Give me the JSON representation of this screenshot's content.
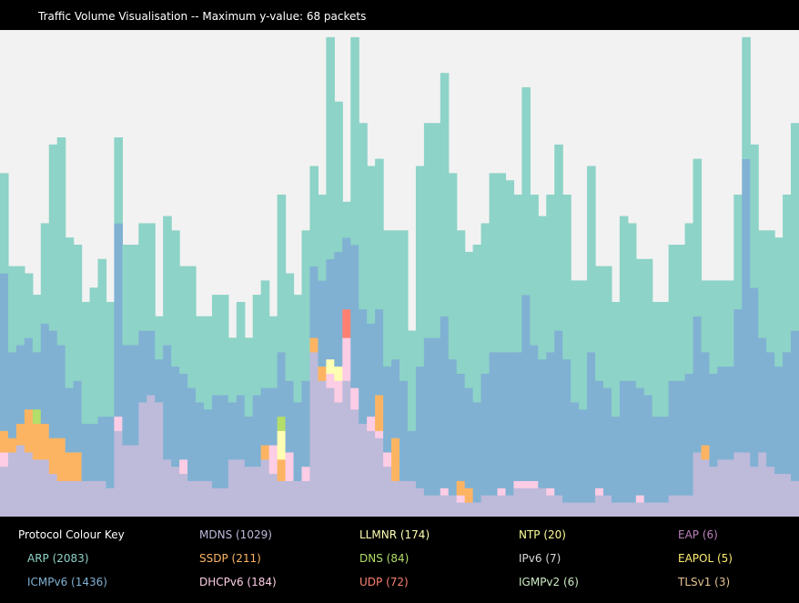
{
  "title": "Traffic Volume Visualisation -- Maximum y-value: 68 packets",
  "key_title": "Protocol Colour Key",
  "colors": {
    "background": "#000000",
    "plot_background": "#f2f2f2",
    "ARP": "#8dd3c7",
    "ICMPv6": "#80b1d3",
    "MDNS": "#bebada",
    "SSDP": "#fdb462",
    "DHCPv6": "#fccde5",
    "LLMNR": "#ffffb3",
    "DNS": "#b3de69",
    "UDP": "#fb8072",
    "NTP": "#ffff99",
    "IPv6": "#d9d9d9",
    "IGMPv2": "#ccebc5",
    "EAP": "#bc80bd",
    "EAPOL": "#ffed6f",
    "TLSv1": "#e5c494"
  },
  "legend": [
    {
      "label": "ARP (2083)",
      "color": "#8dd3c7"
    },
    {
      "label": "ICMPv6 (1436)",
      "color": "#80b1d3"
    },
    {
      "label": "MDNS (1029)",
      "color": "#bebada"
    },
    {
      "label": "SSDP (211)",
      "color": "#fdb462"
    },
    {
      "label": "DHCPv6 (184)",
      "color": "#fccde5"
    },
    {
      "label": "LLMNR (174)",
      "color": "#ffffb3"
    },
    {
      "label": "DNS (84)",
      "color": "#b3de69"
    },
    {
      "label": "UDP (72)",
      "color": "#fb8072"
    },
    {
      "label": "NTP (20)",
      "color": "#ffff99"
    },
    {
      "label": "IPv6 (7)",
      "color": "#d9d9d9"
    },
    {
      "label": "IGMPv2 (6)",
      "color": "#ccebc5"
    },
    {
      "label": "EAP (6)",
      "color": "#bc80bd"
    },
    {
      "label": "EAPOL (5)",
      "color": "#ffed6f"
    },
    {
      "label": "TLSv1 (3)",
      "color": "#e5c494"
    }
  ],
  "chart_data": {
    "type": "bar",
    "stacked": true,
    "ymax": 68,
    "series_order": [
      "MDNS",
      "DHCPv6",
      "UDP",
      "SSDP",
      "LLMNR",
      "DNS",
      "IPv6",
      "ICMPv6",
      "ARP"
    ],
    "totals": [
      48,
      35,
      35,
      34,
      31,
      41,
      52,
      53,
      39,
      38,
      30,
      32,
      36,
      30,
      53,
      38,
      38,
      41,
      41,
      28,
      42,
      40,
      35,
      35,
      28,
      28,
      31,
      31,
      25,
      30,
      25,
      31,
      33,
      28,
      45,
      34,
      31,
      40,
      49,
      45,
      67,
      58,
      44,
      67,
      55,
      49,
      49,
      40,
      40,
      40,
      26,
      49,
      55,
      55,
      62,
      48,
      40,
      37,
      38,
      41,
      48,
      48,
      47,
      45,
      60,
      45,
      42,
      45,
      52,
      45,
      33,
      33,
      49,
      35,
      35,
      30,
      42,
      41,
      36,
      36,
      30,
      30,
      38,
      38,
      41,
      50,
      33,
      33,
      33,
      33,
      45,
      67,
      52,
      40,
      40,
      39,
      45,
      55
    ],
    "layers": {
      "MDNS": [
        7,
        9,
        10,
        9,
        8,
        8,
        6,
        5,
        5,
        5,
        5,
        5,
        5,
        4,
        12,
        10,
        10,
        16,
        17,
        16,
        8,
        7,
        6,
        5,
        5,
        5,
        4,
        4,
        8,
        8,
        7,
        7,
        8,
        6,
        5,
        5,
        5,
        5,
        23,
        19,
        18,
        16,
        19,
        15,
        13,
        12,
        11,
        7,
        5,
        5,
        5,
        4,
        3,
        3,
        3,
        3,
        2,
        2,
        2,
        3,
        3,
        3,
        3,
        4,
        4,
        4,
        4,
        3,
        3,
        2,
        2,
        2,
        2,
        3,
        3,
        2,
        2,
        2,
        2,
        2,
        2,
        2,
        3,
        3,
        3,
        9,
        8,
        7,
        8,
        8,
        9,
        9,
        7,
        9,
        7,
        6,
        6,
        5
      ],
      "DHCPv6": [
        2,
        0,
        0,
        0,
        0,
        0,
        0,
        0,
        0,
        0,
        0,
        0,
        0,
        0,
        2,
        0,
        0,
        0,
        0,
        0,
        0,
        0,
        2,
        0,
        0,
        0,
        0,
        0,
        0,
        0,
        0,
        0,
        0,
        4,
        0,
        4,
        0,
        2,
        0,
        0,
        2,
        3,
        6,
        3,
        0,
        2,
        1,
        2,
        0,
        0,
        0,
        0,
        0,
        0,
        1,
        0,
        1,
        0,
        0,
        0,
        0,
        1,
        0,
        1,
        1,
        1,
        0,
        1,
        0,
        0,
        0,
        0,
        0,
        1,
        0,
        0,
        0,
        0,
        1,
        0,
        0,
        0,
        0,
        0,
        0,
        0,
        0,
        0,
        0,
        0,
        0,
        0,
        0,
        0,
        0,
        0,
        0,
        0
      ],
      "UDP": [
        0,
        0,
        0,
        0,
        0,
        0,
        0,
        0,
        0,
        0,
        0,
        0,
        0,
        0,
        0,
        0,
        0,
        0,
        0,
        0,
        0,
        0,
        0,
        0,
        0,
        0,
        0,
        0,
        0,
        0,
        0,
        0,
        0,
        0,
        0,
        0,
        0,
        0,
        0,
        0,
        0,
        0,
        4,
        0,
        0,
        0,
        0,
        0,
        0,
        0,
        0,
        0,
        0,
        0,
        0,
        0,
        0,
        0,
        0,
        0,
        0,
        0,
        0,
        0,
        0,
        0,
        0,
        0,
        0,
        0,
        0,
        0,
        0,
        0,
        0,
        0,
        0,
        0,
        0,
        0,
        0,
        0,
        0,
        0,
        0,
        0,
        0,
        0,
        0,
        0,
        0,
        0,
        0,
        0,
        0,
        0,
        0,
        0
      ],
      "SSDP": [
        3,
        2,
        3,
        6,
        5,
        5,
        5,
        6,
        4,
        4,
        0,
        0,
        0,
        0,
        0,
        0,
        0,
        0,
        0,
        0,
        0,
        0,
        0,
        0,
        0,
        0,
        0,
        0,
        0,
        0,
        0,
        0,
        2,
        0,
        3,
        0,
        0,
        0,
        2,
        2,
        0,
        0,
        0,
        0,
        0,
        0,
        5,
        0,
        6,
        0,
        0,
        0,
        0,
        0,
        0,
        0,
        2,
        2,
        0,
        0,
        0,
        0,
        0,
        0,
        0,
        0,
        0,
        0,
        0,
        0,
        0,
        0,
        0,
        0,
        0,
        0,
        0,
        0,
        0,
        0,
        0,
        0,
        0,
        0,
        0,
        0,
        2,
        0,
        0,
        0,
        0,
        0,
        0,
        0,
        0,
        0,
        0,
        0
      ],
      "LLMNR": [
        0,
        0,
        0,
        0,
        0,
        0,
        0,
        0,
        0,
        0,
        0,
        0,
        0,
        0,
        0,
        0,
        0,
        0,
        0,
        0,
        0,
        0,
        0,
        0,
        0,
        0,
        0,
        0,
        0,
        0,
        0,
        0,
        0,
        0,
        4,
        0,
        0,
        0,
        0,
        0,
        2,
        2,
        0,
        0,
        0,
        0,
        0,
        0,
        0,
        0,
        0,
        0,
        0,
        0,
        0,
        0,
        0,
        0,
        0,
        0,
        0,
        0,
        0,
        0,
        0,
        0,
        0,
        0,
        0,
        0,
        0,
        0,
        0,
        0,
        0,
        0,
        0,
        0,
        0,
        0,
        0,
        0,
        0,
        0,
        0,
        0,
        0,
        0,
        0,
        0,
        0,
        0,
        0,
        0,
        0,
        0,
        0,
        0
      ],
      "DNS": [
        0,
        0,
        0,
        0,
        2,
        0,
        0,
        0,
        0,
        0,
        0,
        0,
        0,
        0,
        0,
        0,
        0,
        0,
        0,
        0,
        0,
        0,
        0,
        0,
        0,
        0,
        0,
        0,
        0,
        0,
        0,
        0,
        0,
        0,
        2,
        0,
        0,
        0,
        0,
        0,
        0,
        0,
        0,
        0,
        0,
        0,
        0,
        0,
        0,
        0,
        0,
        0,
        0,
        0,
        0,
        0,
        0,
        0,
        0,
        0,
        0,
        0,
        0,
        0,
        0,
        0,
        0,
        0,
        0,
        0,
        0,
        0,
        0,
        0,
        0,
        0,
        0,
        0,
        0,
        0,
        0,
        0,
        0,
        0,
        0,
        0,
        0,
        0,
        0,
        0,
        0,
        0,
        0,
        0,
        0,
        0,
        0,
        0
      ],
      "IPv6": [
        0,
        0,
        0,
        0,
        0,
        0,
        0,
        0,
        0,
        0,
        0,
        0,
        0,
        0,
        0,
        0,
        0,
        0,
        0,
        0,
        0,
        0,
        0,
        0,
        0,
        0,
        0,
        0,
        0,
        0,
        0,
        0,
        0,
        0,
        0,
        0,
        0,
        0,
        0,
        0,
        0,
        0,
        0,
        0,
        0,
        0,
        0,
        0,
        0,
        0,
        0,
        0,
        0,
        0,
        0,
        0,
        0,
        0,
        0,
        0,
        0,
        0,
        0,
        0,
        0,
        0,
        0,
        0,
        0,
        0,
        0,
        0,
        0,
        0,
        0,
        0,
        0,
        0,
        0,
        0,
        0,
        0,
        0,
        0,
        0,
        0,
        0,
        0,
        0,
        0,
        0,
        0,
        0,
        0,
        0,
        0,
        0,
        0
      ],
      "ICMPv6": [
        22,
        12,
        11,
        10,
        8,
        14,
        15,
        13,
        9,
        10,
        8,
        8,
        9,
        10,
        27,
        14,
        14,
        10,
        9,
        6,
        16,
        14,
        12,
        13,
        11,
        10,
        13,
        13,
        8,
        9,
        7,
        10,
        8,
        8,
        9,
        10,
        11,
        12,
        10,
        12,
        14,
        16,
        10,
        20,
        16,
        13,
        12,
        12,
        11,
        14,
        7,
        17,
        22,
        22,
        24,
        19,
        15,
        14,
        14,
        17,
        20,
        19,
        20,
        18,
        26,
        19,
        18,
        19,
        23,
        20,
        14,
        13,
        21,
        15,
        15,
        12,
        17,
        17,
        15,
        15,
        12,
        12,
        16,
        16,
        17,
        19,
        13,
        13,
        13,
        13,
        20,
        41,
        25,
        16,
        16,
        15,
        17,
        21
      ],
      "ARP": [
        14,
        12,
        11,
        9,
        8,
        14,
        26,
        29,
        21,
        19,
        17,
        19,
        22,
        16,
        12,
        14,
        14,
        15,
        15,
        6,
        18,
        19,
        15,
        17,
        12,
        13,
        14,
        14,
        9,
        13,
        11,
        14,
        15,
        10,
        22,
        15,
        15,
        21,
        14,
        12,
        31,
        21,
        5,
        29,
        26,
        22,
        21,
        19,
        18,
        21,
        14,
        28,
        30,
        30,
        34,
        26,
        20,
        19,
        22,
        21,
        25,
        25,
        24,
        22,
        29,
        21,
        20,
        22,
        26,
        23,
        17,
        18,
        26,
        16,
        17,
        16,
        23,
        22,
        18,
        19,
        16,
        16,
        19,
        19,
        21,
        22,
        10,
        13,
        12,
        12,
        16,
        17,
        20,
        15,
        17,
        18,
        22,
        29
      ]
    }
  }
}
